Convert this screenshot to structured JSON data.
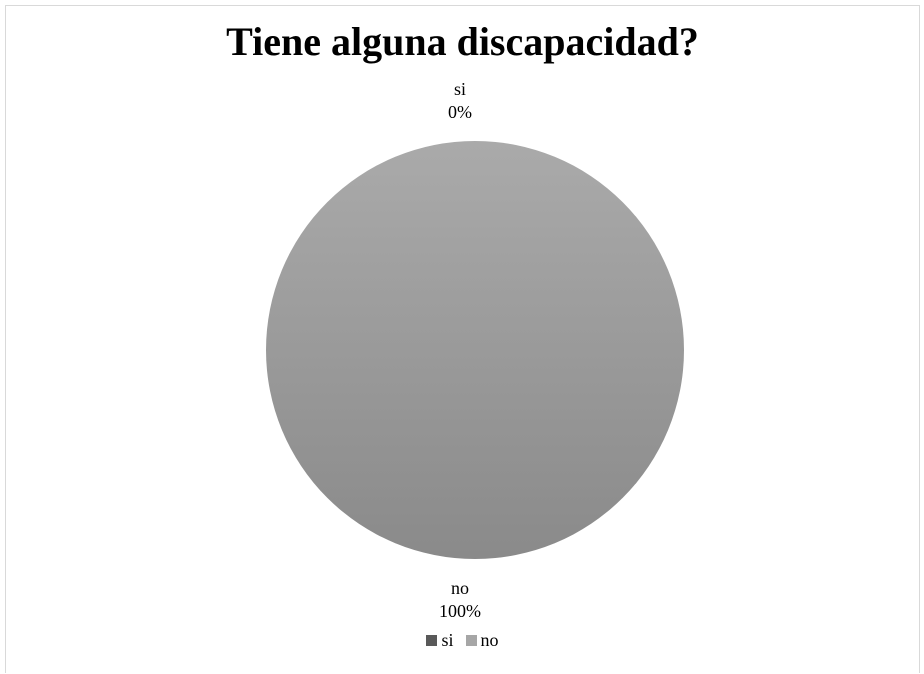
{
  "chart_data": {
    "type": "pie",
    "title": "Tiene alguna discapacidad?",
    "categories": [
      "si",
      "no"
    ],
    "values": [
      0,
      100
    ],
    "unit": "%",
    "data_labels": [
      {
        "category": "si",
        "percent": "0%"
      },
      {
        "category": "no",
        "percent": "100%"
      }
    ],
    "colors": [
      "#595959",
      "#a6a6a6"
    ],
    "legend": {
      "position": "bottom",
      "entries": [
        "si",
        "no"
      ]
    }
  }
}
